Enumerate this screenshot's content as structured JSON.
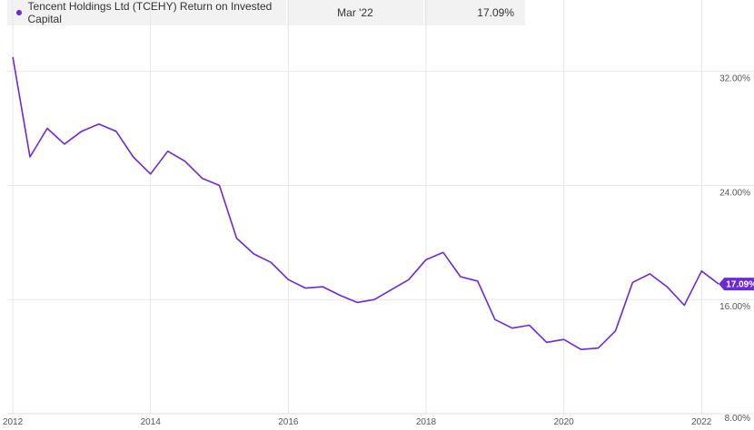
{
  "legend": {
    "series_name": "Tencent Holdings Ltd (TCEHY) Return on Invested Capital",
    "date": "Mar '22",
    "value": "17.09%"
  },
  "colors": {
    "series": "#6d28d9",
    "grid": "#e6e6e6",
    "legend_bg": "#f2f2f2"
  },
  "chart_data": {
    "type": "line",
    "title": "",
    "xlabel": "",
    "ylabel": "",
    "x_ticks": [
      "2012",
      "2014",
      "2016",
      "2018",
      "2020",
      "2022"
    ],
    "y_ticks": [
      "8.00%",
      "16.00%",
      "24.00%",
      "32.00%"
    ],
    "ylim": [
      8,
      37
    ],
    "xlim": [
      2011.92,
      2022.3
    ],
    "grid": true,
    "last_value_label": "17.09%",
    "series": [
      {
        "name": "Tencent Holdings Ltd (TCEHY) Return on Invested Capital",
        "x": [
          2012.0,
          2012.25,
          2012.5,
          2012.75,
          2013.0,
          2013.25,
          2013.5,
          2013.75,
          2014.0,
          2014.25,
          2014.5,
          2014.75,
          2015.0,
          2015.25,
          2015.5,
          2015.75,
          2016.0,
          2016.25,
          2016.5,
          2016.75,
          2017.0,
          2017.25,
          2017.5,
          2017.75,
          2018.0,
          2018.25,
          2018.5,
          2018.75,
          2019.0,
          2019.25,
          2019.5,
          2019.75,
          2020.0,
          2020.25,
          2020.5,
          2020.75,
          2021.0,
          2021.25,
          2021.5,
          2021.75,
          2022.0,
          2022.25
        ],
        "values": [
          33.0,
          26.0,
          28.0,
          26.9,
          27.8,
          28.3,
          27.8,
          26.0,
          24.8,
          26.4,
          25.7,
          24.5,
          24.0,
          20.3,
          19.2,
          18.6,
          17.4,
          16.8,
          16.9,
          16.3,
          15.8,
          16.0,
          16.7,
          17.4,
          18.8,
          19.3,
          17.6,
          17.3,
          14.6,
          14.0,
          14.2,
          13.0,
          13.2,
          12.5,
          12.6,
          13.8,
          17.2,
          17.8,
          16.9,
          15.6,
          18.0,
          17.09
        ]
      }
    ]
  }
}
